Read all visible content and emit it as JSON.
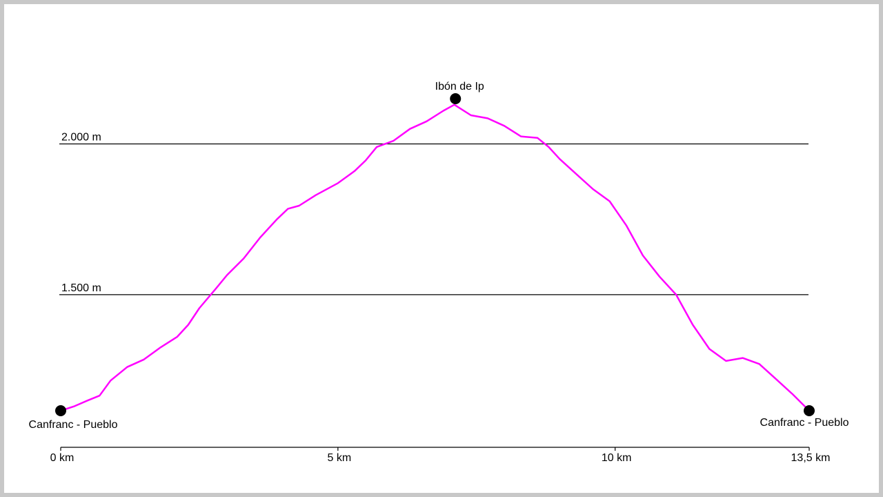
{
  "chart_data": {
    "type": "line",
    "title": "",
    "xlabel": "",
    "ylabel": "",
    "xlim": [
      0,
      13.5
    ],
    "ylim": [
      1100,
      2220
    ],
    "grid": "horizontal reference lines at 1.500 m and 2.000 m",
    "line_color": "#ff00ff",
    "x_ticks": [
      {
        "value": 0,
        "label": "0 km"
      },
      {
        "value": 5,
        "label": "5 km"
      },
      {
        "value": 10,
        "label": "10 km"
      },
      {
        "value": 13.5,
        "label": "13,5 km"
      }
    ],
    "y_reference_lines": [
      {
        "value": 1500,
        "label": "1.500 m"
      },
      {
        "value": 2000,
        "label": "2.000 m"
      }
    ],
    "waypoints": [
      {
        "x": 0,
        "y": 1115,
        "label": "Canfranc - Pueblo"
      },
      {
        "x": 7.12,
        "y": 2150,
        "label": "Ibón de Ip"
      },
      {
        "x": 13.5,
        "y": 1115,
        "label": "Canfranc - Pueblo"
      }
    ],
    "series": [
      {
        "x": [
          0,
          0.25,
          0.5,
          0.7,
          0.9,
          1.2,
          1.5,
          1.8,
          2.1,
          2.3,
          2.5,
          2.8,
          3.0,
          3.3,
          3.6,
          3.9,
          4.1,
          4.3,
          4.6,
          5.0,
          5.3,
          5.5,
          5.7,
          6.0,
          6.3,
          6.6,
          6.9,
          7.1,
          7.4,
          7.7,
          8.0,
          8.3,
          8.6,
          8.8,
          9.0,
          9.3,
          9.6,
          9.9,
          10.2,
          10.5,
          10.8,
          11.1,
          11.4,
          11.7,
          12.0,
          12.3,
          12.6,
          12.9,
          13.2,
          13.5
        ],
        "y": [
          1115,
          1130,
          1150,
          1165,
          1215,
          1260,
          1285,
          1325,
          1360,
          1400,
          1455,
          1520,
          1565,
          1620,
          1690,
          1750,
          1785,
          1795,
          1830,
          1870,
          1910,
          1945,
          1990,
          2010,
          2050,
          2075,
          2110,
          2130,
          2095,
          2085,
          2060,
          2025,
          2020,
          1990,
          1950,
          1900,
          1850,
          1810,
          1730,
          1630,
          1560,
          1500,
          1400,
          1320,
          1280,
          1290,
          1270,
          1220,
          1170,
          1115
        ]
      }
    ]
  }
}
